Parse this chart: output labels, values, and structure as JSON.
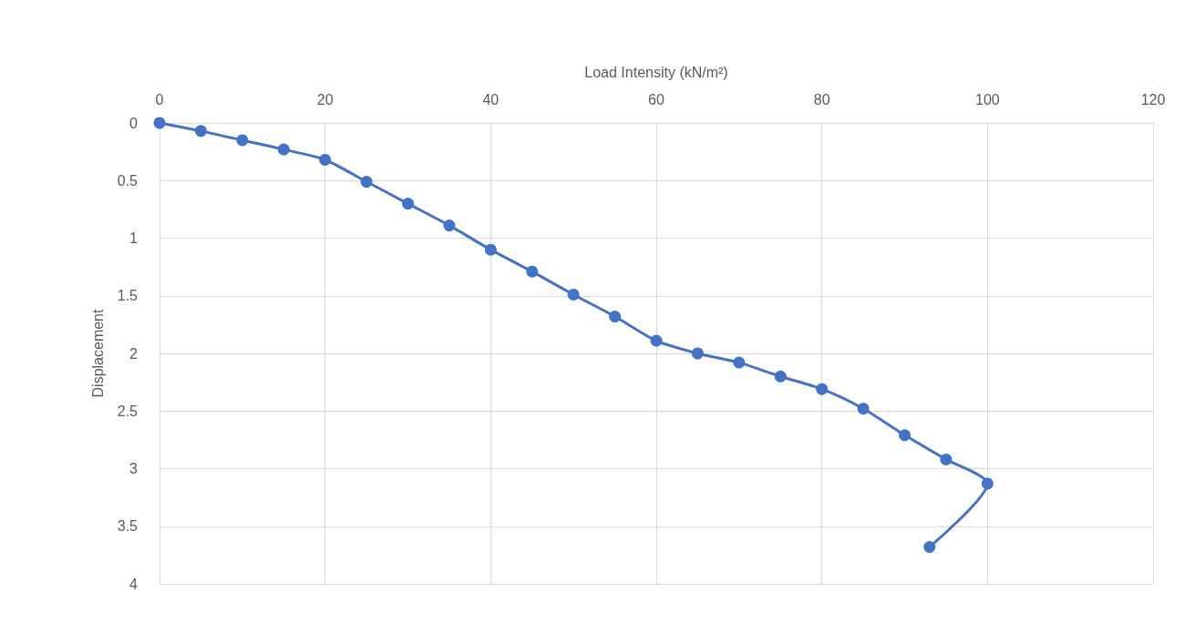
{
  "chart_data": {
    "type": "line",
    "xlabel": "Load Intensity (kN/m²)",
    "ylabel": "Displacement",
    "x": [
      0,
      5,
      10,
      15,
      20,
      25,
      30,
      35,
      40,
      45,
      50,
      55,
      60,
      65,
      70,
      75,
      80,
      85,
      90,
      95,
      100,
      93
    ],
    "series": [
      {
        "color": "#4472c4",
        "values": [
          0,
          0.07,
          0.15,
          0.23,
          0.32,
          0.51,
          0.7,
          0.89,
          1.1,
          1.29,
          1.49,
          1.68,
          1.89,
          2.0,
          2.08,
          2.2,
          2.31,
          2.48,
          2.71,
          2.92,
          3.13,
          3.68
        ]
      }
    ],
    "xlim": [
      0,
      120
    ],
    "xticks": [
      0,
      20,
      40,
      60,
      80,
      100,
      120
    ],
    "ylim": [
      4,
      0
    ],
    "yticks": [
      0,
      0.5,
      1,
      1.5,
      2,
      2.5,
      3,
      3.5,
      4
    ],
    "grid": true,
    "marker": "circle",
    "line_style": "solid"
  }
}
